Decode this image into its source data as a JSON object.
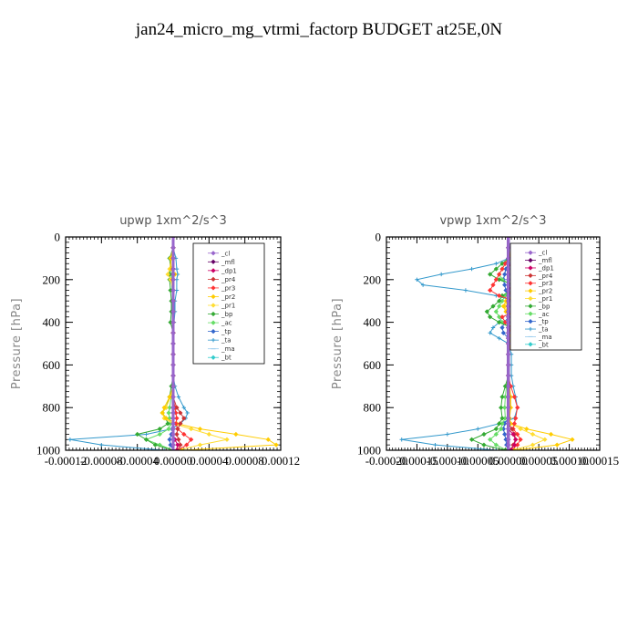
{
  "figure": {
    "title": "jan24_micro_mg_vtrmi_factorp  BUDGET at25E,0N"
  },
  "chart_data": [
    {
      "type": "line",
      "title": "upwp   1xm^2/s^3",
      "ylabel": "Pressure [hPa]",
      "xlabel": "",
      "xlim": [
        -0.00012,
        0.00012
      ],
      "ylim": [
        1000,
        0
      ],
      "x_tick_labels": [
        "-0.00012",
        "-0.00008",
        "-0.00004",
        "0.00000",
        "0.00004",
        "0.00008",
        "0.00012"
      ],
      "x_ticks": [
        -0.00012,
        -8e-05,
        -4e-05,
        0.0,
        4e-05,
        8e-05,
        0.00012
      ],
      "y_tick_labels": [
        "0",
        "200",
        "400",
        "600",
        "800",
        "1000"
      ],
      "y_ticks": [
        0,
        200,
        400,
        600,
        800,
        1000
      ],
      "legend_position": "top-right",
      "levels": [
        0,
        50,
        100,
        150,
        175,
        200,
        250,
        300,
        350,
        400,
        450,
        500,
        550,
        600,
        650,
        700,
        750,
        800,
        825,
        850,
        875,
        900,
        925,
        950,
        975,
        1000
      ],
      "series": [
        {
          "name": "_cl",
          "color": "#9966cc",
          "marker": "diamond",
          "values": [
            0,
            0,
            0,
            0,
            0,
            0,
            0,
            0,
            0,
            0,
            0,
            0,
            0,
            0,
            0,
            0,
            0,
            0,
            0,
            0,
            0,
            0,
            0,
            0,
            0,
            0
          ]
        },
        {
          "name": "_mfl",
          "color": "#660066",
          "marker": "diamond",
          "values": [
            0,
            0,
            0,
            0,
            0,
            0,
            0,
            0,
            0,
            0,
            0,
            0,
            0,
            0,
            0,
            0,
            0,
            0,
            0,
            0,
            0,
            0,
            0,
            0,
            0,
            0
          ]
        },
        {
          "name": "_dp1",
          "color": "#cc0066",
          "marker": "diamond",
          "values": [
            0,
            0,
            0,
            0,
            0,
            0,
            0,
            0,
            0,
            0,
            0,
            0,
            0,
            0,
            0,
            0,
            0,
            0,
            0,
            0,
            0,
            0,
            0,
            2e-06,
            5e-06,
            4e-06
          ]
        },
        {
          "name": "_pr4",
          "color": "#cc3333",
          "marker": "diamond",
          "values": [
            0,
            0,
            0,
            0,
            0,
            0,
            0,
            0,
            0,
            0,
            0,
            0,
            0,
            0,
            0,
            0,
            0,
            4e-06,
            8e-06,
            1.2e-05,
            8e-06,
            5e-06,
            4e-06,
            6e-06,
            8e-06,
            5e-06
          ]
        },
        {
          "name": "_pr3",
          "color": "#ff3333",
          "marker": "diamond",
          "values": [
            0,
            0,
            0,
            0,
            0,
            0,
            0,
            0,
            0,
            0,
            0,
            0,
            0,
            0,
            0,
            0,
            0,
            2e-06,
            3e-06,
            4e-06,
            3e-06,
            5e-06,
            1.2e-05,
            2e-05,
            1.5e-05,
            5e-06
          ]
        },
        {
          "name": "_pr2",
          "color": "#ffcc00",
          "marker": "diamond",
          "values": [
            0,
            0,
            -3e-06,
            -2e-06,
            2e-06,
            -1e-06,
            0,
            0,
            0,
            0,
            0,
            0,
            0,
            0,
            0,
            0,
            -4e-06,
            -1e-05,
            -1.2e-05,
            -8e-06,
            4e-06,
            3e-05,
            7e-05,
            0.000106,
            0.000115,
            1e-05
          ]
        },
        {
          "name": "_pr1",
          "color": "#ffdd33",
          "marker": "diamond",
          "values": [
            0,
            0,
            -2e-06,
            -4e-06,
            -6e-06,
            -3e-06,
            0,
            0,
            0,
            0,
            0,
            0,
            0,
            0,
            0,
            0,
            -3e-06,
            -8e-06,
            -1.2e-05,
            -1e-05,
            0,
            2e-05,
            4e-05,
            6e-05,
            3e-05,
            5e-06
          ]
        },
        {
          "name": "_bp",
          "color": "#33aa33",
          "marker": "diamond",
          "values": [
            0,
            0,
            -4e-06,
            -3e-06,
            -4e-06,
            -4e-06,
            -3e-06,
            -2e-06,
            -2e-06,
            -3e-06,
            0,
            0,
            0,
            0,
            0,
            -2e-06,
            -4e-06,
            -8e-06,
            -1.2e-05,
            -8e-06,
            -6e-06,
            -1.5e-05,
            -4e-05,
            -3e-05,
            -2e-05,
            0
          ]
        },
        {
          "name": "_ac",
          "color": "#66dd66",
          "marker": "diamond",
          "values": [
            0,
            0,
            0,
            0,
            -2e-06,
            -2e-06,
            -1e-06,
            0,
            0,
            0,
            0,
            0,
            0,
            0,
            0,
            0,
            -2e-06,
            -4e-06,
            -5e-06,
            -4e-06,
            -3e-06,
            -5e-06,
            -1.5e-05,
            -3e-05,
            -1.5e-05,
            0
          ]
        },
        {
          "name": "_tp",
          "color": "#3366cc",
          "marker": "diamond",
          "values": [
            0,
            0,
            0,
            0,
            0,
            0,
            0,
            0,
            0,
            0,
            0,
            0,
            0,
            0,
            0,
            0,
            0,
            0,
            0,
            0,
            0,
            0,
            -2e-06,
            -4e-06,
            -3e-06,
            0
          ]
        },
        {
          "name": "_ta",
          "color": "#3399cc",
          "marker": "cross",
          "values": [
            0,
            0,
            3e-06,
            4e-06,
            5e-06,
            4e-06,
            4e-06,
            2e-06,
            2e-06,
            1e-06,
            0,
            0,
            0,
            0,
            0,
            2e-06,
            6e-06,
            1.2e-05,
            1.6e-05,
            1.4e-05,
            8e-06,
            -2e-06,
            -3e-05,
            -0.000115,
            -8e-05,
            -1e-05
          ]
        },
        {
          "name": "_ma",
          "color": "#99ccee",
          "marker": "dash",
          "values": [
            0,
            0,
            0,
            0,
            0,
            0,
            0,
            0,
            0,
            0,
            0,
            0,
            0,
            0,
            0,
            0,
            0,
            0,
            0,
            0,
            0,
            0,
            0,
            0,
            0,
            0
          ]
        },
        {
          "name": "_bt",
          "color": "#33cccc",
          "marker": "diamond",
          "values": [
            0,
            0,
            0,
            0,
            0,
            0,
            0,
            0,
            0,
            0,
            0,
            0,
            0,
            0,
            0,
            0,
            0,
            0,
            0,
            0,
            0,
            0,
            0,
            0,
            0,
            0
          ]
        }
      ]
    },
    {
      "type": "line",
      "title": "vpwp   1xm^2/s^3",
      "ylabel": "Pressure [hPa]",
      "xlabel": "",
      "xlim": [
        -0.0002,
        0.00015
      ],
      "ylim": [
        1000,
        0
      ],
      "x_tick_labels": [
        "-0.00020",
        "-0.00015",
        "-0.00010",
        "-0.00005",
        "0.00000",
        "0.00005",
        "0.00010",
        "0.00015"
      ],
      "x_ticks": [
        -0.0002,
        -0.00015,
        -0.0001,
        -5e-05,
        0.0,
        5e-05,
        0.0001,
        0.00015
      ],
      "y_tick_labels": [
        "0",
        "200",
        "400",
        "600",
        "800",
        "1000"
      ],
      "y_ticks": [
        0,
        200,
        400,
        600,
        800,
        1000
      ],
      "legend_position": "top-right",
      "levels": [
        0,
        50,
        100,
        125,
        150,
        175,
        200,
        225,
        250,
        275,
        300,
        325,
        350,
        375,
        400,
        425,
        450,
        475,
        500,
        550,
        600,
        650,
        700,
        750,
        800,
        850,
        875,
        900,
        925,
        950,
        975,
        1000
      ],
      "series": [
        {
          "name": "_cl",
          "color": "#9966cc",
          "marker": "diamond",
          "values": [
            0,
            0,
            0,
            0,
            0,
            0,
            0,
            0,
            0,
            0,
            0,
            0,
            0,
            0,
            0,
            0,
            0,
            0,
            0,
            0,
            0,
            0,
            0,
            0,
            0,
            0,
            0,
            0,
            0,
            0,
            0,
            0
          ]
        },
        {
          "name": "_mfl",
          "color": "#660066",
          "marker": "diamond",
          "values": [
            0,
            0,
            0,
            0,
            0,
            0,
            0,
            0,
            0,
            0,
            0,
            0,
            0,
            0,
            0,
            0,
            0,
            0,
            0,
            0,
            0,
            0,
            0,
            0,
            0,
            0,
            0,
            0,
            0,
            0,
            0,
            0
          ]
        },
        {
          "name": "_dp1",
          "color": "#cc0066",
          "marker": "diamond",
          "values": [
            0,
            0,
            0,
            0,
            1e-05,
            1.2e-05,
            8e-06,
            6e-06,
            0,
            0,
            0,
            0,
            0,
            0,
            0,
            0,
            0,
            0,
            0,
            0,
            0,
            0,
            0,
            0,
            0,
            0,
            0,
            0,
            8e-06,
            1.2e-05,
            1e-05,
            4e-06
          ]
        },
        {
          "name": "_pr4",
          "color": "#cc3333",
          "marker": "diamond",
          "values": [
            0,
            0,
            0,
            0,
            8e-06,
            1e-05,
            1.5e-05,
            1e-05,
            6e-06,
            0,
            0,
            0,
            0,
            0,
            0,
            0,
            0,
            0,
            0,
            0,
            0,
            0,
            0,
            0,
            0,
            0,
            0,
            6e-06,
            1e-05,
            1.2e-05,
            8e-06,
            4e-06
          ]
        },
        {
          "name": "_pr3",
          "color": "#ff3333",
          "marker": "diamond",
          "values": [
            0,
            0,
            0,
            -5e-06,
            -1e-05,
            -1.5e-05,
            -2e-05,
            -2.5e-05,
            -3e-05,
            -1.5e-05,
            1e-05,
            1.5e-05,
            1e-05,
            -1e-05,
            -5e-06,
            5e-06,
            0,
            0,
            0,
            0,
            0,
            0,
            4e-06,
            1e-05,
            1.5e-05,
            1.2e-05,
            1e-05,
            8e-06,
            1.5e-05,
            2e-05,
            1.5e-05,
            5e-06
          ]
        },
        {
          "name": "_pr2",
          "color": "#ffcc00",
          "marker": "diamond",
          "values": [
            0,
            0,
            4e-06,
            1.2e-05,
            3e-05,
            5e-05,
            9e-05,
            7e-05,
            3e-05,
            1e-05,
            -4e-06,
            -8e-06,
            -4e-06,
            1e-05,
            8e-06,
            4e-06,
            2e-06,
            4e-06,
            4e-06,
            0,
            0,
            0,
            2e-06,
            4e-06,
            4e-06,
            2e-06,
            4e-06,
            3e-05,
            7e-05,
            0.000105,
            8e-05,
            1e-05
          ]
        },
        {
          "name": "_pr1",
          "color": "#ffdd33",
          "marker": "diamond",
          "values": [
            0,
            0,
            3e-06,
            1e-05,
            2e-05,
            3e-05,
            5e-05,
            4e-05,
            2e-05,
            5e-06,
            -2e-06,
            -5e-06,
            -2e-06,
            8e-06,
            6e-06,
            3e-06,
            2e-06,
            3e-06,
            3e-06,
            0,
            0,
            0,
            2e-06,
            3e-06,
            3e-06,
            2e-06,
            3e-06,
            2e-05,
            4e-05,
            6e-05,
            4e-05,
            5e-06
          ]
        },
        {
          "name": "_bp",
          "color": "#33aa33",
          "marker": "diamond",
          "values": [
            0,
            0,
            0,
            -1e-05,
            -2e-05,
            -3e-05,
            -1.5e-05,
            1e-05,
            5e-06,
            -1e-05,
            -1.5e-05,
            -2.5e-05,
            -3.5e-05,
            -3e-05,
            -1.5e-05,
            5e-06,
            1e-05,
            5e-06,
            0,
            0,
            0,
            0,
            -5e-06,
            -1e-05,
            -1.2e-05,
            -1e-05,
            -1.5e-05,
            -2e-05,
            -4e-05,
            -6e-05,
            -4e-05,
            -5e-06
          ]
        },
        {
          "name": "_ac",
          "color": "#66dd66",
          "marker": "diamond",
          "values": [
            0,
            0,
            0,
            -5e-06,
            -1e-05,
            -1.5e-05,
            -1e-05,
            5e-06,
            3e-06,
            -5e-06,
            -1e-05,
            -1.5e-05,
            -2e-05,
            -1.5e-05,
            -1e-05,
            3e-06,
            5e-06,
            3e-06,
            0,
            0,
            0,
            0,
            -3e-06,
            -5e-06,
            -6e-06,
            -5e-06,
            -1e-05,
            -1.2e-05,
            -2e-05,
            -3e-05,
            -2e-05,
            -3e-06
          ]
        },
        {
          "name": "_tp",
          "color": "#3366cc",
          "marker": "diamond",
          "values": [
            0,
            0,
            0,
            0,
            -4e-06,
            -6e-06,
            -8e-06,
            -6e-06,
            -4e-06,
            0,
            0,
            0,
            0,
            0,
            -6e-06,
            -1e-05,
            -8e-06,
            0,
            0,
            0,
            0,
            0,
            0,
            0,
            0,
            0,
            -6e-06,
            -8e-06,
            -6e-06,
            -4e-06,
            -3e-06,
            0
          ]
        },
        {
          "name": "_ta",
          "color": "#3399cc",
          "marker": "cross",
          "values": [
            0,
            0,
            0,
            -2e-05,
            -6e-05,
            -0.00011,
            -0.00015,
            -0.00014,
            -7e-05,
            -2e-05,
            1e-05,
            1.5e-05,
            1e-05,
            -1e-05,
            -1.5e-05,
            -2.5e-05,
            -3e-05,
            -1.5e-05,
            0,
            5e-06,
            5e-06,
            5e-06,
            8e-06,
            1.2e-05,
            1.5e-05,
            1e-05,
            -1.5e-05,
            -5e-05,
            -0.0001,
            -0.000175,
            -0.00012,
            -2e-05
          ]
        },
        {
          "name": "_ma",
          "color": "#99ccee",
          "marker": "dash",
          "values": [
            0,
            0,
            0,
            0,
            0,
            0,
            0,
            0,
            0,
            0,
            0,
            0,
            0,
            0,
            0,
            0,
            0,
            0,
            0,
            0,
            0,
            0,
            0,
            0,
            0,
            0,
            0,
            0,
            0,
            0,
            0,
            0
          ]
        },
        {
          "name": "_bt",
          "color": "#33cccc",
          "marker": "diamond",
          "values": [
            0,
            0,
            0,
            0,
            0,
            0,
            0,
            0,
            0,
            0,
            0,
            0,
            0,
            0,
            0,
            0,
            0,
            0,
            0,
            0,
            0,
            0,
            0,
            0,
            0,
            0,
            0,
            0,
            0,
            0,
            0,
            0
          ]
        }
      ]
    }
  ]
}
